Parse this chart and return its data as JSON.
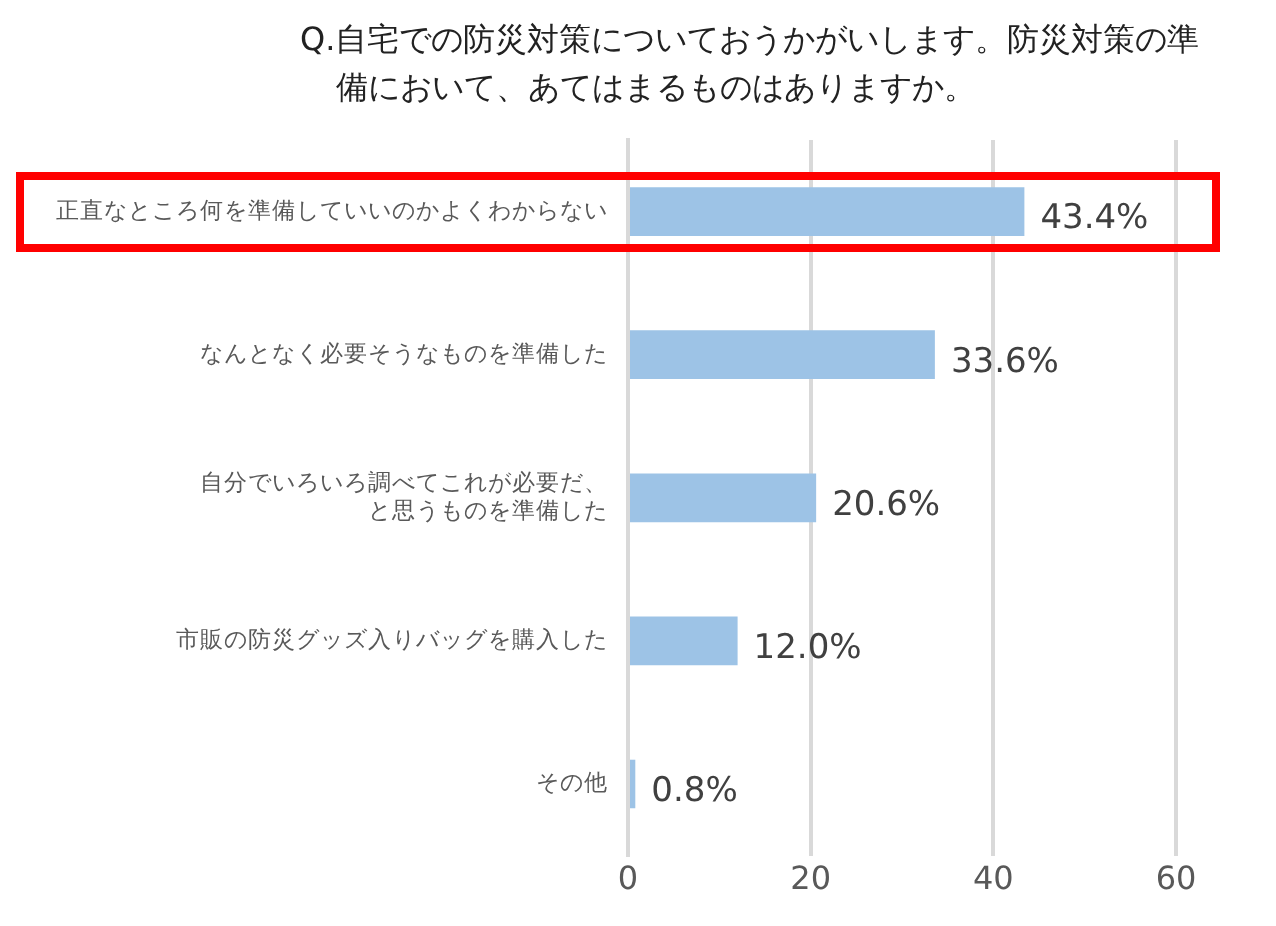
{
  "chart_data": {
    "type": "bar",
    "orientation": "horizontal",
    "title": "Q.自宅での防災対策についておうかがいします。防災対策の準備において、あてはまるものはありますか。",
    "categories": [
      "正直なところ何を準備していいのかよくわからない",
      "なんとなく必要そうなものを準備した",
      "自分でいろいろ調べてこれが必要だ、と思うものを準備した",
      "市販の防災グッズ入りバッグを購入した",
      "その他"
    ],
    "values": [
      43.4,
      33.6,
      20.6,
      12.0,
      0.8
    ],
    "value_labels": [
      "43.4%",
      "33.6%",
      "20.6%",
      "12.0%",
      "0.8%"
    ],
    "color": "#9dc3e6",
    "xlim": [
      0,
      60
    ],
    "xticks": [
      0,
      20,
      40,
      60
    ],
    "grid": "x",
    "legend": false
  }
}
